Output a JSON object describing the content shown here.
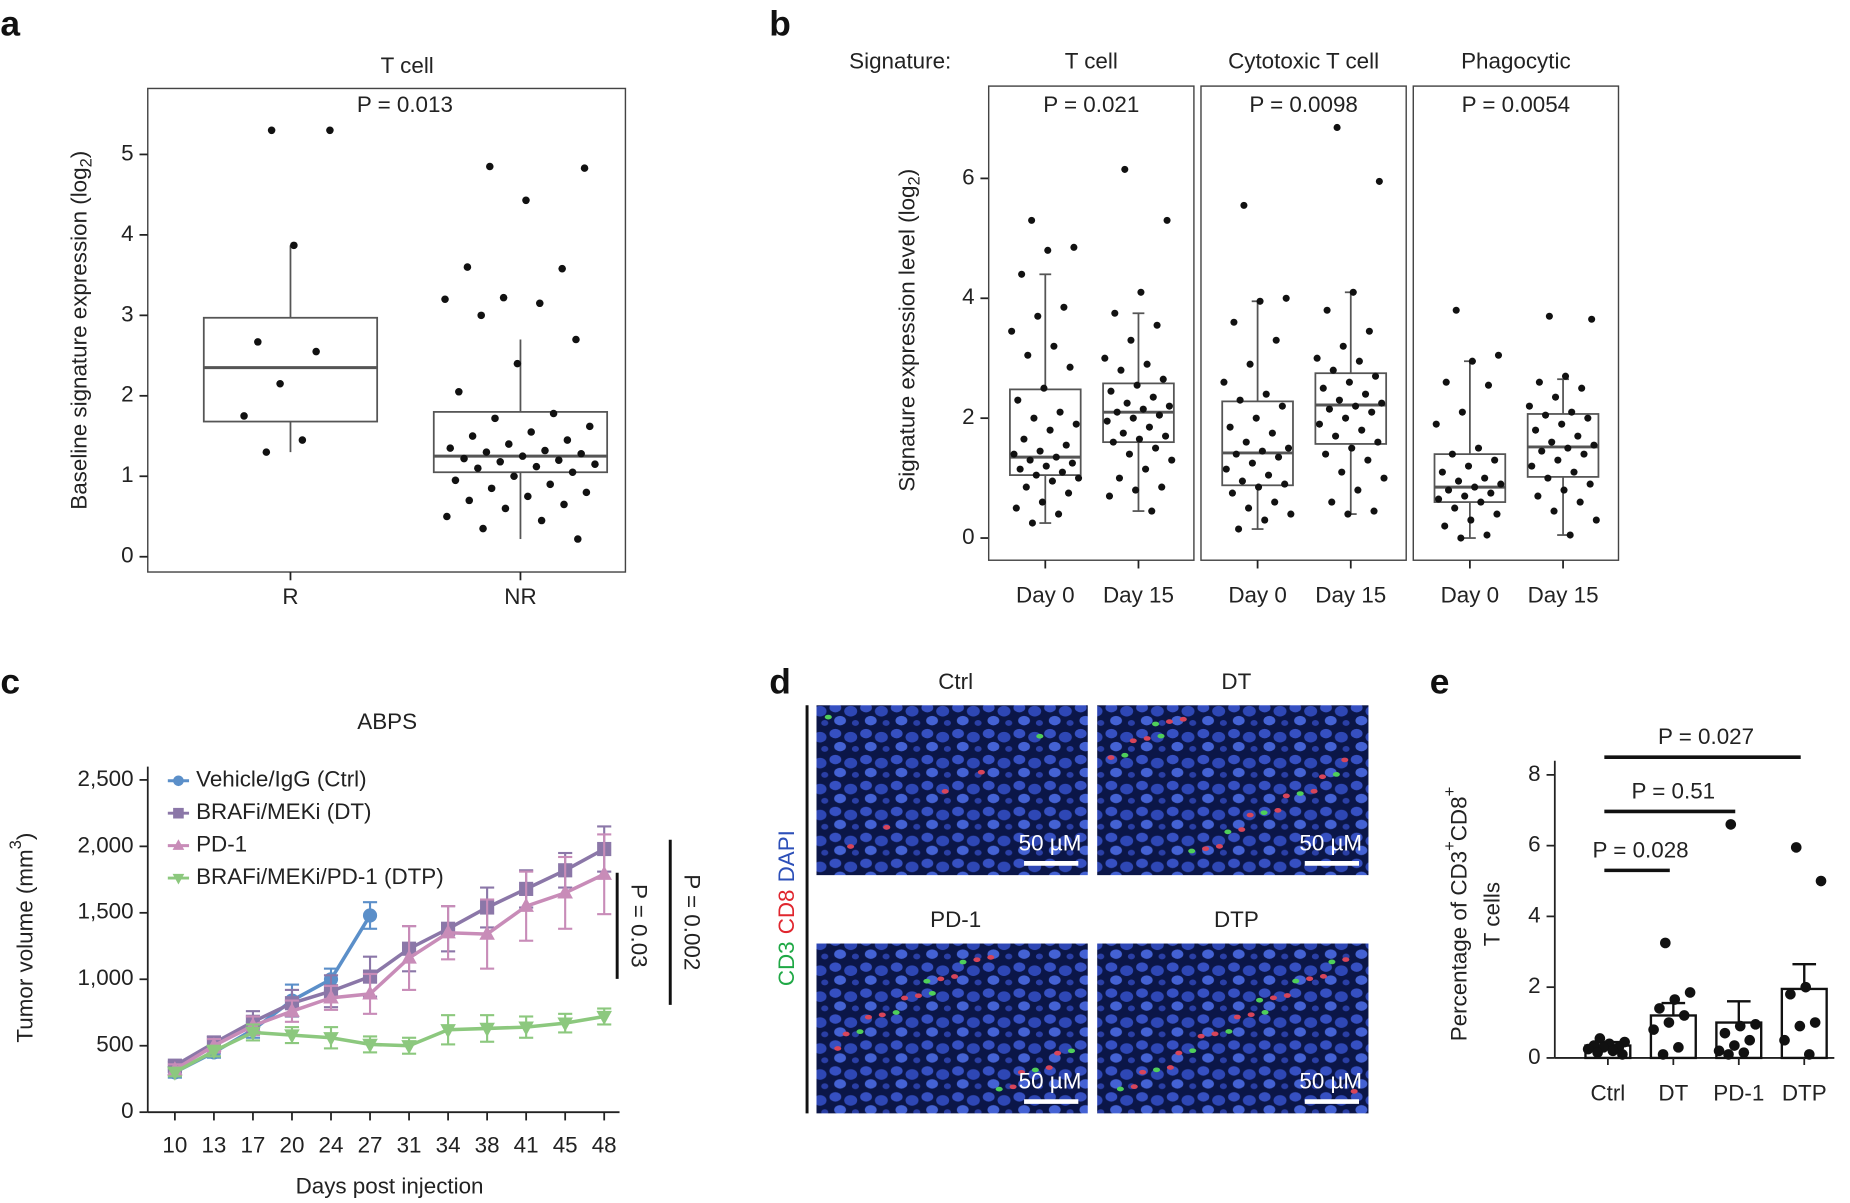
{
  "chart_data": [
    {
      "type": "box",
      "panel": "a",
      "title": "T cell",
      "annotation": "P = 0.013",
      "ylabel": [
        "Baseline signature expression (log",
        "2",
        ")"
      ],
      "ylabel_shift": "sub",
      "categories": [
        "R",
        "NR"
      ],
      "ylim": [
        -0.19,
        5.82
      ],
      "yticks": [
        0,
        1,
        2,
        3,
        4,
        5
      ],
      "boxes": [
        {
          "whisker_low": 1.3,
          "q1": 1.68,
          "median": 2.35,
          "q3": 2.97,
          "whisker_high": 3.87
        },
        {
          "whisker_low": 0.22,
          "q1": 1.05,
          "median": 1.25,
          "q3": 1.8,
          "whisker_high": 2.7
        }
      ],
      "points": [
        [
          5.3,
          5.3,
          3.87,
          2.67,
          2.55,
          2.15,
          1.75,
          1.45,
          1.3
        ],
        [
          4.85,
          4.83,
          4.43,
          3.6,
          3.58,
          3.22,
          3.2,
          3.15,
          3.0,
          2.7,
          2.4,
          2.05,
          1.78,
          1.72,
          1.62,
          1.55,
          1.5,
          1.45,
          1.4,
          1.35,
          1.32,
          1.3,
          1.28,
          1.25,
          1.22,
          1.2,
          1.18,
          1.15,
          1.12,
          1.1,
          1.05,
          1.0,
          0.95,
          0.9,
          0.85,
          0.8,
          0.75,
          0.7,
          0.65,
          0.6,
          0.5,
          0.45,
          0.35,
          0.22
        ]
      ]
    },
    {
      "type": "box_facets",
      "panel": "b",
      "label": "Signature:",
      "ylabel": [
        "Signature expression level (log",
        "2",
        ")"
      ],
      "ylabel_shift": "sub",
      "ylim": [
        -0.37,
        7.54
      ],
      "yticks": [
        0,
        2,
        4,
        6
      ],
      "facets": [
        {
          "title": "T cell",
          "annotation": "P = 0.021",
          "categories": [
            "Day 0",
            "Day 15"
          ],
          "boxes": [
            {
              "whisker_low": 0.25,
              "q1": 1.05,
              "median": 1.35,
              "q3": 2.48,
              "whisker_high": 4.4
            },
            {
              "whisker_low": 0.45,
              "q1": 1.6,
              "median": 2.1,
              "q3": 2.58,
              "whisker_high": 3.75
            }
          ],
          "points": [
            [
              5.3,
              4.85,
              4.8,
              4.4,
              3.85,
              3.7,
              3.45,
              3.2,
              3.05,
              2.85,
              2.5,
              2.3,
              2.1,
              2.0,
              1.9,
              1.8,
              1.65,
              1.55,
              1.45,
              1.4,
              1.35,
              1.3,
              1.25,
              1.2,
              1.15,
              1.1,
              1.05,
              1.0,
              0.95,
              0.85,
              0.75,
              0.6,
              0.5,
              0.4,
              0.25
            ],
            [
              6.15,
              5.3,
              4.1,
              3.75,
              3.55,
              3.3,
              3.0,
              2.9,
              2.8,
              2.65,
              2.55,
              2.45,
              2.35,
              2.25,
              2.2,
              2.15,
              2.1,
              2.05,
              2.0,
              1.95,
              1.85,
              1.75,
              1.7,
              1.65,
              1.6,
              1.5,
              1.4,
              1.3,
              1.15,
              1.0,
              0.85,
              0.8,
              0.7,
              0.45
            ]
          ]
        },
        {
          "title": "Cytotoxic T cell",
          "annotation": "P = 0.0098",
          "categories": [
            "Day 0",
            "Day 15"
          ],
          "boxes": [
            {
              "whisker_low": 0.15,
              "q1": 0.88,
              "median": 1.42,
              "q3": 2.28,
              "whisker_high": 3.95
            },
            {
              "whisker_low": 0.4,
              "q1": 1.57,
              "median": 2.22,
              "q3": 2.75,
              "whisker_high": 4.1
            }
          ],
          "points": [
            [
              5.55,
              4.0,
              3.95,
              3.6,
              3.3,
              2.9,
              2.6,
              2.4,
              2.3,
              2.2,
              2.0,
              1.85,
              1.75,
              1.6,
              1.5,
              1.45,
              1.4,
              1.35,
              1.25,
              1.15,
              1.05,
              0.95,
              0.9,
              0.85,
              0.75,
              0.6,
              0.5,
              0.4,
              0.3,
              0.15
            ],
            [
              6.85,
              5.95,
              4.1,
              3.8,
              3.45,
              3.2,
              3.0,
              2.95,
              2.8,
              2.7,
              2.6,
              2.5,
              2.4,
              2.3,
              2.25,
              2.2,
              2.15,
              2.1,
              2.0,
              1.9,
              1.8,
              1.7,
              1.6,
              1.5,
              1.4,
              1.3,
              1.1,
              1.0,
              0.8,
              0.6,
              0.45,
              0.4
            ]
          ]
        },
        {
          "title": "Phagocytic",
          "annotation": "P = 0.0054",
          "categories": [
            "Day 0",
            "Day 15"
          ],
          "boxes": [
            {
              "whisker_low": 0,
              "q1": 0.6,
              "median": 0.85,
              "q3": 1.4,
              "whisker_high": 2.95
            },
            {
              "whisker_low": 0.05,
              "q1": 1.02,
              "median": 1.52,
              "q3": 2.07,
              "whisker_high": 2.65
            }
          ],
          "points": [
            [
              3.8,
              3.05,
              2.95,
              2.6,
              2.55,
              2.1,
              1.9,
              1.5,
              1.4,
              1.3,
              1.2,
              1.1,
              1.0,
              0.95,
              0.9,
              0.85,
              0.8,
              0.75,
              0.7,
              0.65,
              0.6,
              0.5,
              0.4,
              0.3,
              0.2,
              0.05,
              0
            ],
            [
              3.7,
              3.65,
              2.7,
              2.6,
              2.5,
              2.35,
              2.2,
              2.1,
              2.05,
              2.0,
              1.9,
              1.8,
              1.7,
              1.6,
              1.55,
              1.5,
              1.45,
              1.4,
              1.3,
              1.2,
              1.1,
              1.0,
              0.9,
              0.8,
              0.7,
              0.6,
              0.45,
              0.3,
              0.05
            ]
          ]
        }
      ]
    },
    {
      "type": "line",
      "panel": "c",
      "title": "ABPS",
      "xlabel": "Days post injection",
      "ylabel": [
        "Tumor volume (mm",
        "3",
        ")"
      ],
      "ylabel_shift": "sup",
      "legend": "upper left",
      "categories": [
        10,
        13,
        17,
        20,
        24,
        27,
        31,
        34,
        38,
        41,
        45,
        48
      ],
      "ylim": [
        0,
        2600
      ],
      "yticks": [
        0,
        500,
        {
          "value": 1000,
          "label": "1,000"
        },
        {
          "value": 1500,
          "label": "1,500"
        },
        {
          "value": 2000,
          "label": "2,000"
        },
        {
          "value": 2500,
          "label": "2,500"
        }
      ],
      "series": [
        {
          "name": "Vehicle/IgG (Ctrl)",
          "color": "#5b8fc9",
          "marker": "circle",
          "values": [
            300,
            450,
            620,
            840,
            1000,
            1480,
            null,
            null,
            null,
            null,
            null,
            null
          ],
          "errors": [
            40,
            40,
            60,
            120,
            80,
            100,
            null,
            null,
            null,
            null,
            null,
            null
          ]
        },
        {
          "name": "BRAFi/MEKi (DT)",
          "color": "#8b77a8",
          "marker": "square",
          "values": [
            350,
            520,
            680,
            820,
            910,
            1020,
            1230,
            1380,
            1540,
            1680,
            1820,
            1980
          ],
          "errors": [
            30,
            50,
            80,
            100,
            120,
            150,
            170,
            170,
            150,
            140,
            130,
            170
          ]
        },
        {
          "name": "PD-1",
          "color": "#c88cb8",
          "marker": "triangle-up",
          "values": [
            320,
            500,
            650,
            760,
            860,
            890,
            1160,
            1350,
            1340,
            1550,
            1650,
            1790
          ],
          "errors": [
            40,
            50,
            70,
            80,
            90,
            150,
            240,
            200,
            260,
            260,
            270,
            300
          ]
        },
        {
          "name": "BRAFi/MEKi/PD-1 (DTP)",
          "color": "#8cc87e",
          "marker": "triangle-down",
          "values": [
            300,
            460,
            600,
            580,
            560,
            510,
            500,
            620,
            630,
            640,
            670,
            720
          ],
          "errors": [
            30,
            40,
            60,
            60,
            80,
            60,
            60,
            110,
            100,
            80,
            70,
            60
          ]
        }
      ],
      "annotations": [
        "P = 0.03",
        "P = 0.002"
      ]
    },
    {
      "type": "bar",
      "panel": "e",
      "ylabel": [
        "Percentage of CD3",
        "+",
        "CD8",
        "+"
      ],
      "ylabel_shift": "sup",
      "ylabel2": "T cells",
      "categories": [
        "Ctrl",
        "DT",
        "PD-1",
        "DTP"
      ],
      "ylim": [
        0,
        8.4
      ],
      "yticks": [
        0,
        2,
        4,
        6,
        8
      ],
      "color": "#ffffff",
      "values": [
        0.35,
        1.2,
        1.0,
        1.95
      ],
      "errors": [
        0.1,
        0.35,
        0.6,
        0.7
      ],
      "points": [
        [
          0.55,
          0.45,
          0.4,
          0.35,
          0.3,
          0.3,
          0.25,
          0.2,
          0.15,
          0.1
        ],
        [
          3.25,
          1.85,
          1.65,
          1.4,
          1.2,
          1.0,
          0.8,
          0.3,
          0.1
        ],
        [
          6.6,
          0.95,
          0.9,
          0.7,
          0.5,
          0.35,
          0.2,
          0.15,
          0.1
        ],
        [
          5.95,
          5.0,
          2.0,
          1.8,
          1.0,
          0.9,
          0.5,
          0.1
        ]
      ],
      "annotations": [
        "P = 0.028",
        "P = 0.51",
        "P = 0.027"
      ]
    }
  ],
  "panel_d": {
    "panel": "d",
    "stains": [
      {
        "text": "CD3",
        "color": "#1fa845"
      },
      {
        "text": "CD8",
        "color": "#e0262e"
      },
      {
        "text": "DAPI",
        "color": "#2c4fb8"
      }
    ],
    "images": [
      {
        "label": "Ctrl"
      },
      {
        "label": "DT"
      },
      {
        "label": "PD-1"
      },
      {
        "label": "DTP"
      }
    ],
    "scale_bar": "50 µM"
  }
}
